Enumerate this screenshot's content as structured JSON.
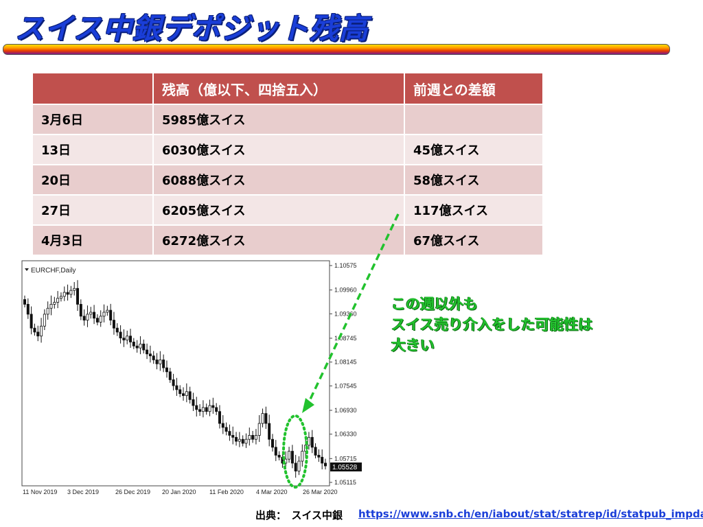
{
  "title": "スイス中銀デポジット残高",
  "table": {
    "headers": [
      "",
      "残高（億以下、四捨五入）",
      "前週との差額"
    ],
    "rows": [
      [
        "3月6日",
        "5985億スイス",
        ""
      ],
      [
        "13日",
        "6030億スイス",
        "45億スイス"
      ],
      [
        "20日",
        "6088億スイス",
        "58億スイス"
      ],
      [
        "27日",
        "6205億スイス",
        "117億スイス"
      ],
      [
        "4月3日",
        "6272億スイス",
        "67億スイス"
      ]
    ]
  },
  "chart": {
    "symbol_label": "EURCHF,Daily",
    "price_ticks": [
      "1.10575",
      "1.09960",
      "1.09360",
      "1.08745",
      "1.08145",
      "1.07545",
      "1.06930",
      "1.06330",
      "1.05715",
      "1.05115"
    ],
    "current_price": "1.05528",
    "date_ticks": [
      "11 Nov 2019",
      "3 Dec 2019",
      "26 Dec 2019",
      "20 Jan 2020",
      "11 Feb 2020",
      "4 Mar 2020",
      "26 Mar 2020"
    ],
    "closes": [
      1.096,
      1.0935,
      1.09,
      1.089,
      1.088,
      1.0905,
      1.0935,
      1.095,
      1.096,
      1.0965,
      1.0975,
      1.098,
      1.099,
      1.0985,
      1.0995,
      1.1,
      1.096,
      1.093,
      1.092,
      1.0935,
      1.094,
      1.0925,
      1.0915,
      1.093,
      1.094,
      1.0945,
      1.092,
      1.09,
      1.089,
      1.0875,
      1.087,
      1.088,
      1.0865,
      1.0855,
      1.085,
      1.086,
      1.0845,
      1.0835,
      1.083,
      1.082,
      1.081,
      1.082,
      1.08,
      1.079,
      1.077,
      1.0755,
      1.0745,
      1.0735,
      1.073,
      1.074,
      1.072,
      1.0705,
      1.0695,
      1.069,
      1.07,
      1.069,
      1.0705,
      1.07,
      1.069,
      1.066,
      1.065,
      1.064,
      1.063,
      1.0625,
      1.0615,
      1.062,
      1.061,
      1.062,
      1.063,
      1.062,
      1.063,
      1.066,
      1.0685,
      1.066,
      1.062,
      1.06,
      1.058,
      1.0575,
      1.056,
      1.057,
      1.059,
      1.056,
      1.054,
      1.0565,
      1.059,
      1.0605,
      1.0625,
      1.06,
      1.058,
      1.0575,
      1.056,
      1.0553
    ]
  },
  "annotation": {
    "lines": [
      "この週以外も",
      "スイス売り介入をした可能性は",
      "大きい"
    ],
    "color": "#22c22e"
  },
  "source_label": "出典：　スイス中銀",
  "source_url": "https://www.snb.ch/en/iabout/stat/statrep/id/statpub_impdata"
}
